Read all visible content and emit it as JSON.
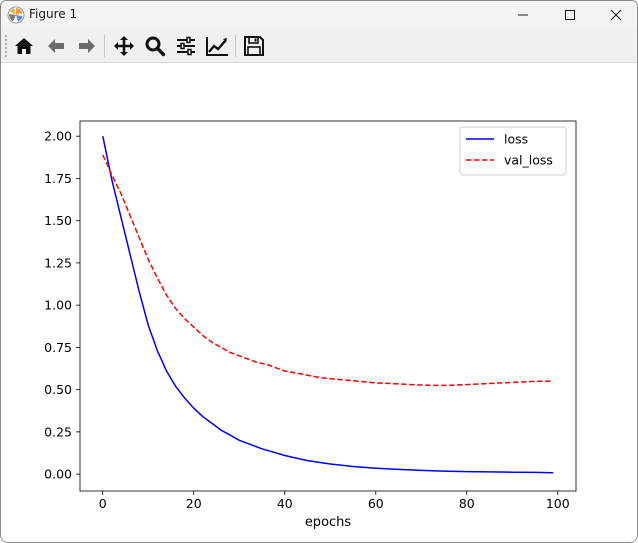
{
  "window": {
    "title": "Figure 1"
  },
  "toolbar": {
    "buttons": [
      {
        "name": "home-icon"
      },
      {
        "name": "back-icon"
      },
      {
        "name": "forward-icon"
      },
      {
        "name": "pan-icon"
      },
      {
        "name": "zoom-icon"
      },
      {
        "name": "configure-subplots-icon"
      },
      {
        "name": "edit-axis-icon"
      },
      {
        "name": "save-icon"
      }
    ]
  },
  "chart_data": {
    "type": "line",
    "title": "",
    "xlabel": "epochs",
    "ylabel": "",
    "xlim": [
      -5,
      104
    ],
    "ylim": [
      -0.1,
      2.09
    ],
    "x_ticks": [
      0,
      20,
      40,
      60,
      80,
      100
    ],
    "x_tick_labels": [
      "0",
      "20",
      "40",
      "60",
      "80",
      "100"
    ],
    "y_ticks": [
      0.0,
      0.25,
      0.5,
      0.75,
      1.0,
      1.25,
      1.5,
      1.75,
      2.0
    ],
    "y_tick_labels": [
      "0.00",
      "0.25",
      "0.50",
      "0.75",
      "1.00",
      "1.25",
      "1.50",
      "1.75",
      "2.00"
    ],
    "grid": false,
    "legend": "top-right",
    "series": [
      {
        "name": "loss",
        "color": "#0000ff",
        "style": "solid",
        "x": [
          0,
          2,
          4,
          6,
          8,
          10,
          12,
          14,
          16,
          18,
          20,
          22,
          24,
          26,
          28,
          30,
          35,
          40,
          45,
          50,
          55,
          60,
          65,
          70,
          75,
          80,
          85,
          90,
          95,
          99
        ],
        "values": [
          2.0,
          1.74,
          1.52,
          1.3,
          1.08,
          0.88,
          0.73,
          0.61,
          0.52,
          0.45,
          0.39,
          0.34,
          0.3,
          0.26,
          0.23,
          0.2,
          0.15,
          0.11,
          0.08,
          0.06,
          0.045,
          0.035,
          0.028,
          0.022,
          0.018,
          0.015,
          0.013,
          0.011,
          0.01,
          0.008
        ]
      },
      {
        "name": "val_loss",
        "color": "#ff0000",
        "style": "dashed",
        "x": [
          0,
          2,
          4,
          6,
          8,
          10,
          12,
          14,
          16,
          18,
          20,
          22,
          24,
          26,
          28,
          30,
          32,
          34,
          36,
          38,
          40,
          44,
          48,
          52,
          56,
          60,
          64,
          68,
          72,
          76,
          80,
          84,
          88,
          92,
          96,
          99
        ],
        "values": [
          1.89,
          1.77,
          1.66,
          1.53,
          1.4,
          1.27,
          1.16,
          1.06,
          0.98,
          0.92,
          0.87,
          0.82,
          0.78,
          0.75,
          0.72,
          0.7,
          0.68,
          0.66,
          0.65,
          0.63,
          0.61,
          0.59,
          0.57,
          0.56,
          0.55,
          0.54,
          0.535,
          0.53,
          0.525,
          0.525,
          0.53,
          0.535,
          0.54,
          0.545,
          0.55,
          0.55
        ]
      }
    ]
  }
}
